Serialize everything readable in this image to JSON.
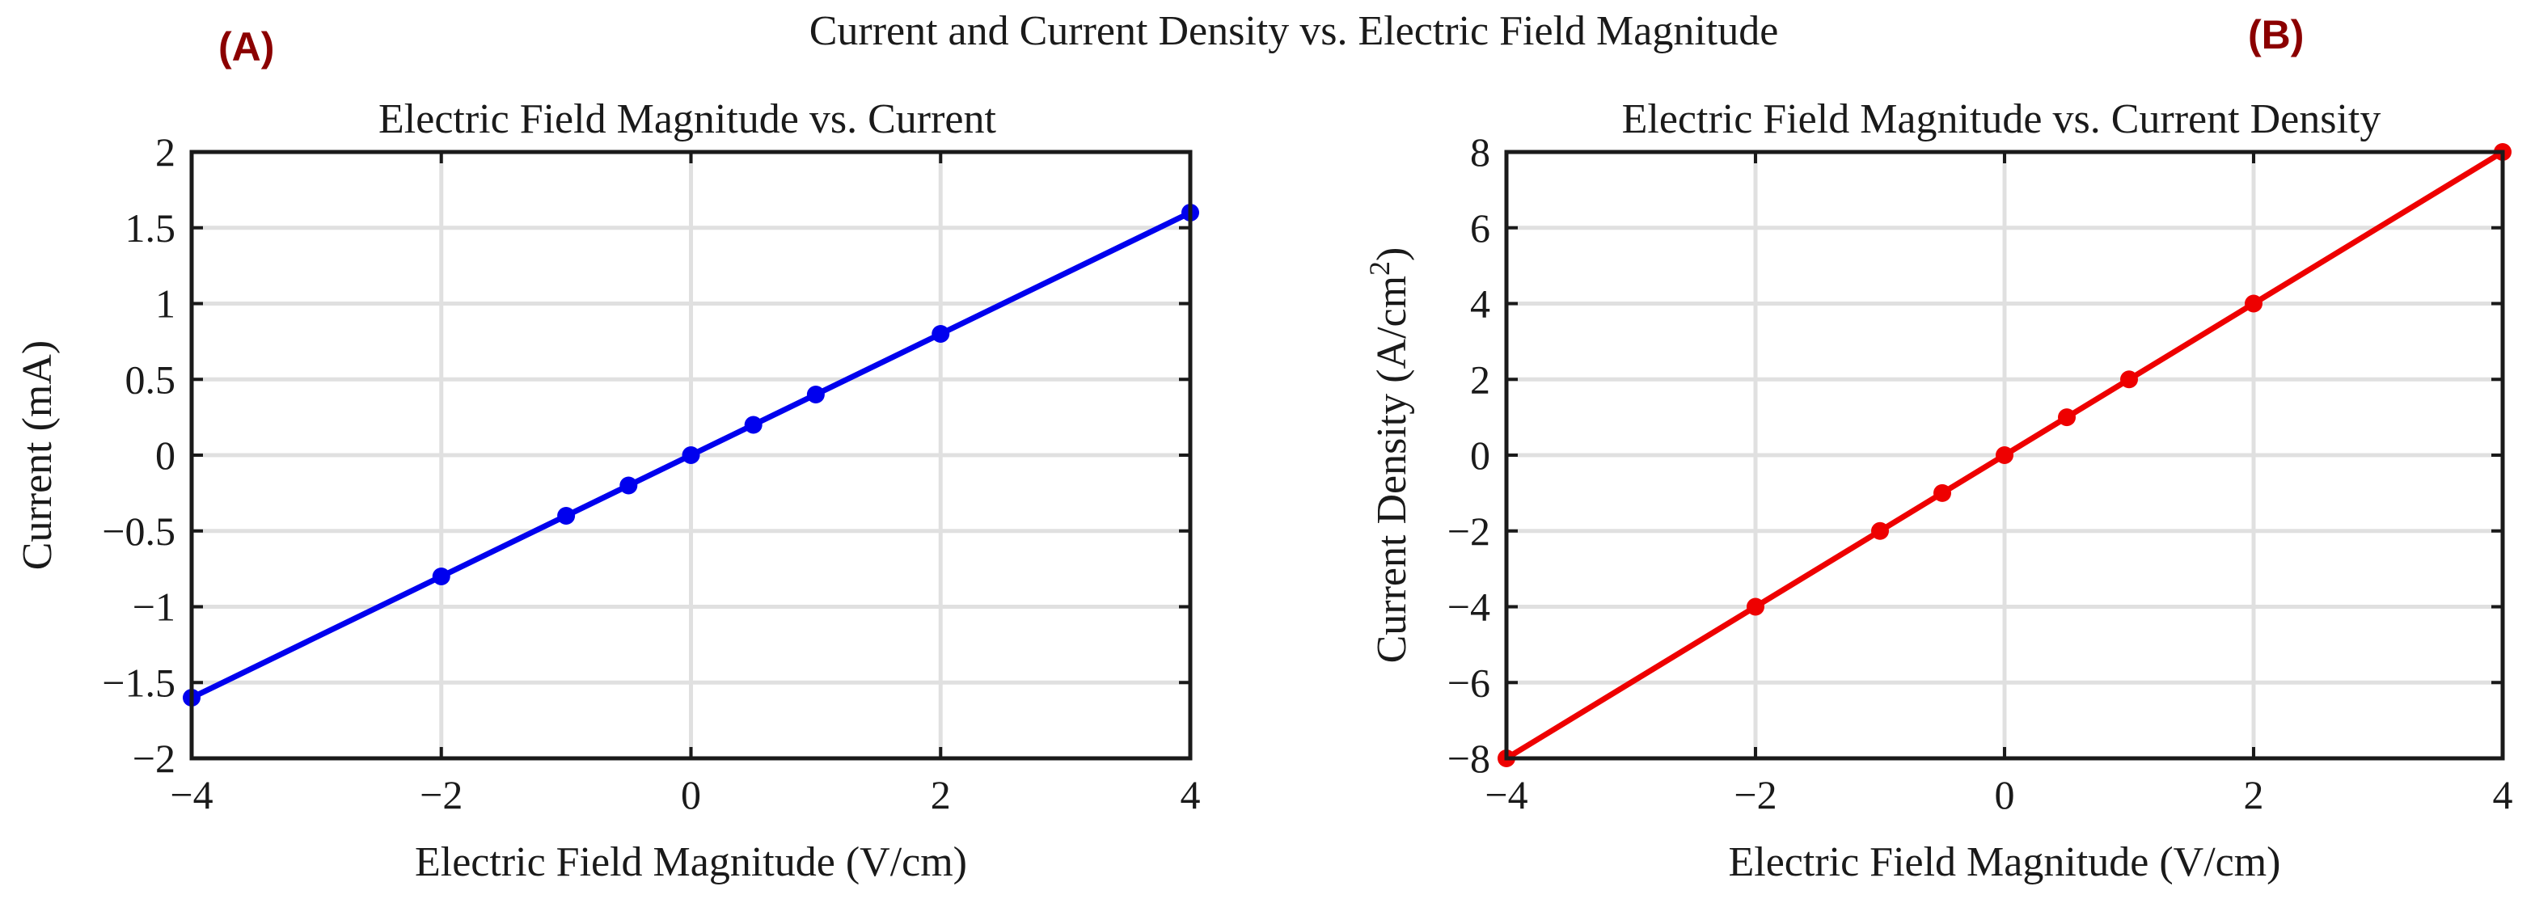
{
  "figure_title": "Current and Current Density vs. Electric Field Magnitude",
  "panel_labels": [
    "(A)",
    "(B)"
  ],
  "colors": {
    "panel_label": "#8b0000",
    "series_a": "#0000ee",
    "series_b": "#ee0000",
    "grid": "#e0e0e0",
    "axis": "#1a1a1a"
  },
  "chart_data": [
    {
      "type": "line",
      "title": "Electric Field Magnitude vs. Current",
      "xlabel": "Electric Field Magnitude (V/cm)",
      "ylabel": "Current (mA)",
      "xlim": [
        -4,
        4
      ],
      "ylim": [
        -2,
        2
      ],
      "xticks": [
        -4,
        -2,
        0,
        2,
        4
      ],
      "xtick_labels": [
        "−4",
        "−2",
        "0",
        "2",
        "4"
      ],
      "yticks": [
        -2,
        -1.5,
        -1,
        -0.5,
        0,
        0.5,
        1,
        1.5,
        2
      ],
      "ytick_labels": [
        "−2",
        "−1.5",
        "−1",
        "−0.5",
        "0",
        "0.5",
        "1",
        "1.5",
        "2"
      ],
      "grid": true,
      "series": [
        {
          "name": "Current",
          "color": "#0000ee",
          "x": [
            -4,
            -2,
            -1,
            -0.5,
            0,
            0.5,
            1,
            2,
            4
          ],
          "y": [
            -1.6,
            -0.8,
            -0.4,
            -0.2,
            0,
            0.2,
            0.4,
            0.8,
            1.6
          ]
        }
      ]
    },
    {
      "type": "line",
      "title": "Electric Field Magnitude vs. Current Density",
      "xlabel": "Electric Field Magnitude (V/cm)",
      "ylabel": "Current Density (A/cm",
      "ylabel_sup": "2",
      "ylabel_tail": ")",
      "xlim": [
        -4,
        4
      ],
      "ylim": [
        -8,
        8
      ],
      "xticks": [
        -4,
        -2,
        0,
        2,
        4
      ],
      "xtick_labels": [
        "−4",
        "−2",
        "0",
        "2",
        "4"
      ],
      "yticks": [
        -8,
        -6,
        -4,
        -2,
        0,
        2,
        4,
        6,
        8
      ],
      "ytick_labels": [
        "−8",
        "−6",
        "−4",
        "−2",
        "0",
        "2",
        "4",
        "6",
        "8"
      ],
      "grid": true,
      "series": [
        {
          "name": "Current Density",
          "color": "#ee0000",
          "x": [
            -4,
            -2,
            -1,
            -0.5,
            0,
            0.5,
            1,
            2,
            4
          ],
          "y": [
            -8,
            -4,
            -2,
            -1,
            0,
            1,
            2,
            4,
            8
          ]
        }
      ]
    }
  ]
}
